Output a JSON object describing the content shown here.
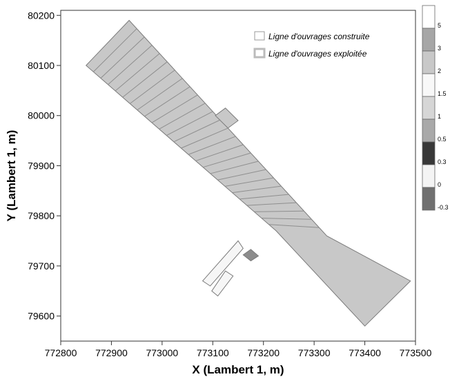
{
  "chart_data": {
    "type": "contour-map",
    "xlabel": "X (Lambert 1, m)",
    "ylabel": "Y (Lambert 1, m)",
    "xlim": [
      772800,
      773500
    ],
    "ylim": [
      79550,
      80210
    ],
    "x_ticks": [
      {
        "value": 772800,
        "label": "772800"
      },
      {
        "value": 772900,
        "label": "772900"
      },
      {
        "value": 773000,
        "label": "773000"
      },
      {
        "value": 773100,
        "label": "773100"
      },
      {
        "value": 773200,
        "label": "773200"
      },
      {
        "value": 773300,
        "label": "773300"
      },
      {
        "value": 773400,
        "label": "773400"
      },
      {
        "value": 773500,
        "label": "773500"
      }
    ],
    "y_ticks": [
      {
        "value": 79600,
        "label": "79600"
      },
      {
        "value": 79700,
        "label": "79700"
      },
      {
        "value": 79800,
        "label": "79800"
      },
      {
        "value": 79900,
        "label": "79900"
      },
      {
        "value": 80000,
        "label": "80000"
      },
      {
        "value": 80100,
        "label": "80100"
      },
      {
        "value": 80200,
        "label": "80200"
      }
    ],
    "legend": {
      "placement": "top-right",
      "items": [
        {
          "label": "Ligne d'ouvrages construite",
          "style": "thin-outline"
        },
        {
          "label": "Ligne d'ouvrages exploitée",
          "style": "thick-outline"
        }
      ]
    },
    "colorbar": {
      "labels": [
        "5",
        "3",
        "2",
        "1.5",
        "1",
        "0.5",
        "0.3",
        "0",
        "-0.3"
      ],
      "colors": [
        "#ffffff",
        "#a6a6a6",
        "#c8c8c8",
        "#f8f8f8",
        "#d6d6d6",
        "#a9a9a9",
        "#383838",
        "#f4f4f4",
        "#707070"
      ]
    },
    "regions": [
      {
        "name": "main-panel",
        "polygon": [
          [
            772850,
            80100
          ],
          [
            772935,
            80190
          ],
          [
            773325,
            79760
          ],
          [
            773490,
            79670
          ],
          [
            773400,
            79580
          ],
          [
            773225,
            79770
          ]
        ],
        "fill": "#c8c8c8"
      },
      {
        "name": "notch",
        "polygon": [
          [
            773105,
            80000
          ],
          [
            773125,
            80015
          ],
          [
            773150,
            79990
          ],
          [
            773130,
            79975
          ]
        ],
        "fill": "#c8c8c8"
      },
      {
        "name": "small-block-left",
        "polygon": [
          [
            773080,
            79670
          ],
          [
            773150,
            79750
          ],
          [
            773160,
            79735
          ],
          [
            773095,
            79660
          ]
        ],
        "fill": "#f6f6f6"
      },
      {
        "name": "small-block-lower",
        "polygon": [
          [
            773098,
            79650
          ],
          [
            773125,
            79690
          ],
          [
            773140,
            79680
          ],
          [
            773110,
            79640
          ]
        ],
        "fill": "#f6f6f6"
      },
      {
        "name": "small-square",
        "polygon": [
          [
            773160,
            79722
          ],
          [
            773175,
            79710
          ],
          [
            773190,
            79720
          ],
          [
            773175,
            79733
          ]
        ],
        "fill": "#8c8c8c"
      }
    ]
  }
}
